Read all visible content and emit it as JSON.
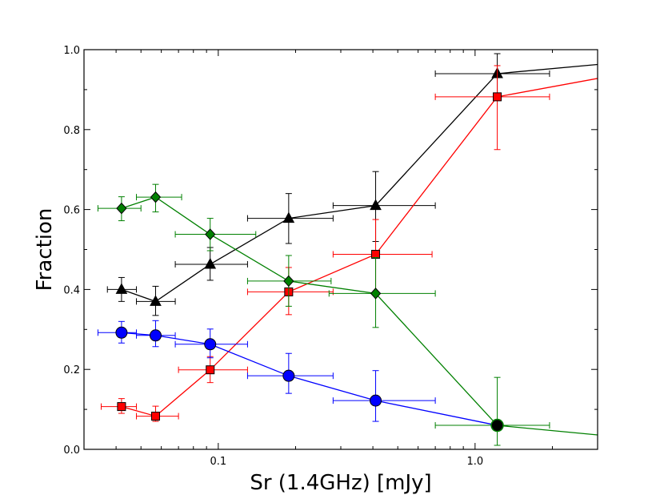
{
  "chart_data": {
    "type": "scatter",
    "title": "",
    "xlabel": "Sr (1.4GHz) [mJy]",
    "ylabel": "Fraction",
    "xscale": "log",
    "xlim": [
      0.03,
      3.0
    ],
    "ylim": [
      0.0,
      1.0
    ],
    "x_ticks": [
      {
        "value": 0.1,
        "label": "0.1"
      },
      {
        "value": 1.0,
        "label": "1.0"
      }
    ],
    "y_ticks": [
      {
        "value": 0.0,
        "label": "0.0"
      },
      {
        "value": 0.2,
        "label": "0.2"
      },
      {
        "value": 0.4,
        "label": "0.4"
      },
      {
        "value": 0.6,
        "label": "0.6"
      },
      {
        "value": 0.8,
        "label": "0.8"
      },
      {
        "value": 1.0,
        "label": "1.0"
      }
    ],
    "grid": false,
    "series": [
      {
        "name": "black-triangles",
        "color": "#000000",
        "marker": "triangle",
        "points": [
          {
            "x": 0.042,
            "y": 0.4,
            "xerr": [
              0.037,
              0.048
            ],
            "yerr": [
              0.37,
              0.43
            ]
          },
          {
            "x": 0.057,
            "y": 0.37,
            "xerr": [
              0.048,
              0.068
            ],
            "yerr": [
              0.335,
              0.408
            ]
          },
          {
            "x": 0.093,
            "y": 0.463,
            "xerr": [
              0.068,
              0.13
            ],
            "yerr": [
              0.423,
              0.505
            ]
          },
          {
            "x": 0.188,
            "y": 0.578,
            "xerr": [
              0.13,
              0.28
            ],
            "yerr": [
              0.515,
              0.64
            ]
          },
          {
            "x": 0.41,
            "y": 0.61,
            "xerr": [
              0.28,
              0.7
            ],
            "yerr": [
              0.52,
              0.695
            ]
          },
          {
            "x": 1.22,
            "y": 0.94,
            "xerr": [
              0.7,
              1.95
            ],
            "yerr": [
              0.89,
              0.99
            ]
          },
          {
            "x": 3.0,
            "y": 0.963,
            "noMarker": true
          }
        ]
      },
      {
        "name": "red-squares",
        "color": "#ff0000",
        "marker": "square",
        "points": [
          {
            "x": 0.042,
            "y": 0.107,
            "xerr": [
              0.035,
              0.048
            ],
            "yerr": [
              0.09,
              0.127
            ]
          },
          {
            "x": 0.057,
            "y": 0.083,
            "xerr": [
              0.048,
              0.07
            ],
            "yerr": [
              0.07,
              0.108
            ]
          },
          {
            "x": 0.093,
            "y": 0.199,
            "xerr": [
              0.07,
              0.13
            ],
            "yerr": [
              0.167,
              0.232
            ]
          },
          {
            "x": 0.188,
            "y": 0.394,
            "xerr": [
              0.13,
              0.28
            ],
            "yerr": [
              0.337,
              0.455
            ]
          },
          {
            "x": 0.41,
            "y": 0.488,
            "xerr": [
              0.28,
              0.68
            ],
            "yerr": [
              0.393,
              0.575
            ]
          },
          {
            "x": 1.22,
            "y": 0.882,
            "xerr": [
              0.7,
              1.95
            ],
            "yerr": [
              0.75,
              0.96
            ]
          },
          {
            "x": 3.0,
            "y": 0.928,
            "noMarker": true
          }
        ]
      },
      {
        "name": "green-diamonds",
        "color": "#008000",
        "marker": "diamond",
        "points": [
          {
            "x": 0.042,
            "y": 0.603,
            "xerr": [
              0.034,
              0.05
            ],
            "yerr": [
              0.572,
              0.632
            ]
          },
          {
            "x": 0.057,
            "y": 0.631,
            "xerr": [
              0.048,
              0.072
            ],
            "yerr": [
              0.594,
              0.663
            ]
          },
          {
            "x": 0.093,
            "y": 0.538,
            "xerr": [
              0.068,
              0.14
            ],
            "yerr": [
              0.497,
              0.578
            ]
          },
          {
            "x": 0.188,
            "y": 0.421,
            "xerr": [
              0.13,
              0.275
            ],
            "yerr": [
              0.358,
              0.485
            ]
          },
          {
            "x": 0.41,
            "y": 0.39,
            "xerr": [
              0.27,
              0.7
            ],
            "yerr": [
              0.305,
              0.48
            ]
          },
          {
            "x": 1.22,
            "y": 0.06,
            "xerr": [
              0.7,
              1.95
            ],
            "yerr": [
              0.01,
              0.18
            ]
          },
          {
            "x": 3.0,
            "y": 0.036,
            "noMarker": true
          }
        ]
      },
      {
        "name": "blue-circles",
        "color": "#0000ff",
        "marker": "circle",
        "points": [
          {
            "x": 0.042,
            "y": 0.292,
            "xerr": [
              0.034,
              0.048
            ],
            "yerr": [
              0.266,
              0.32
            ]
          },
          {
            "x": 0.057,
            "y": 0.285,
            "xerr": [
              0.048,
              0.068
            ],
            "yerr": [
              0.257,
              0.322
            ]
          },
          {
            "x": 0.093,
            "y": 0.263,
            "xerr": [
              0.068,
              0.13
            ],
            "yerr": [
              0.229,
              0.301
            ]
          },
          {
            "x": 0.188,
            "y": 0.184,
            "xerr": [
              0.13,
              0.28
            ],
            "yerr": [
              0.14,
              0.24
            ]
          },
          {
            "x": 0.41,
            "y": 0.122,
            "xerr": [
              0.28,
              0.7
            ],
            "yerr": [
              0.07,
              0.197
            ]
          },
          {
            "x": 1.22,
            "y": 0.06,
            "noMarker": true
          }
        ]
      }
    ],
    "overlay_marker": {
      "series": "black-filled-circle",
      "x": 1.22,
      "y": 0.06,
      "color": "#000000",
      "fill": "#008000",
      "marker": "circle"
    }
  }
}
